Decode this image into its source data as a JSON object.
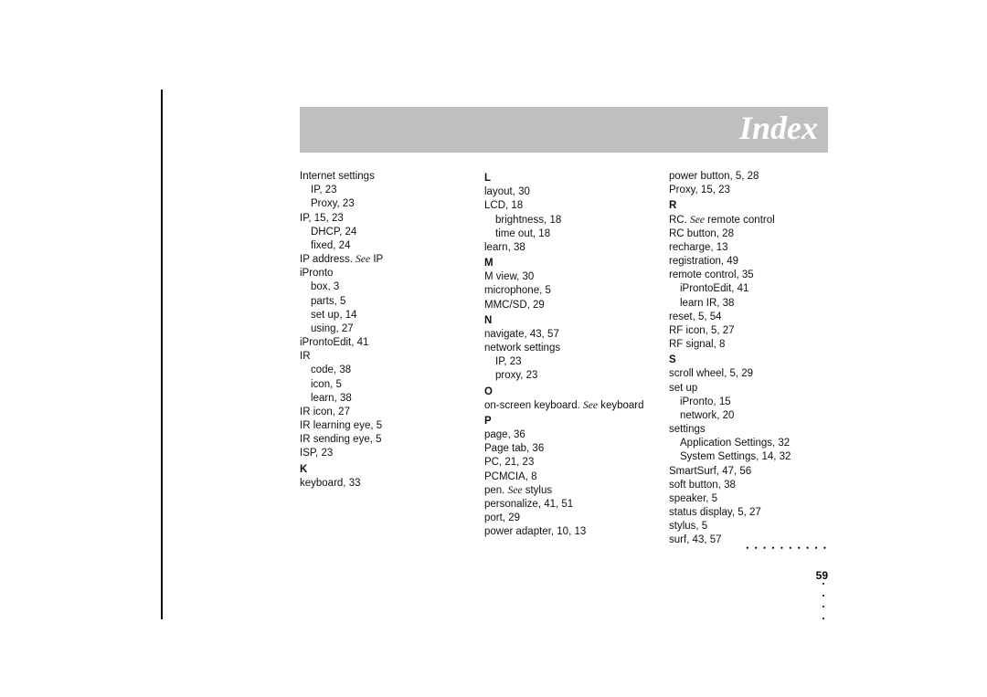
{
  "header": {
    "title": "Index"
  },
  "page_number": "59",
  "dots": "• • • • • • • • • •",
  "columns": {
    "col1": [
      {
        "t": "Internet settings",
        "i": 0
      },
      {
        "t": "IP, 23",
        "i": 1
      },
      {
        "t": "Proxy, 23",
        "i": 1
      },
      {
        "t": "IP, 15, 23",
        "i": 0
      },
      {
        "t": "DHCP, 24",
        "i": 1
      },
      {
        "t": "fixed, 24",
        "i": 1
      },
      {
        "t": "IP address. ",
        "see": "See",
        "after": " IP",
        "i": 0
      },
      {
        "t": "iPronto",
        "i": 0
      },
      {
        "t": "box, 3",
        "i": 1
      },
      {
        "t": "parts, 5",
        "i": 1
      },
      {
        "t": "set up, 14",
        "i": 1
      },
      {
        "t": "using, 27",
        "i": 1
      },
      {
        "t": "iProntoEdit, 41",
        "i": 0
      },
      {
        "t": "IR",
        "i": 0
      },
      {
        "t": "code, 38",
        "i": 1
      },
      {
        "t": "icon, 5",
        "i": 1
      },
      {
        "t": "learn, 38",
        "i": 1
      },
      {
        "t": "IR icon, 27",
        "i": 0
      },
      {
        "t": "IR learning eye, 5",
        "i": 0
      },
      {
        "t": "IR sending eye, 5",
        "i": 0
      },
      {
        "t": "ISP, 23",
        "i": 0
      },
      {
        "letter": "K"
      },
      {
        "t": "keyboard, 33",
        "i": 0
      }
    ],
    "col2": [
      {
        "letter": "L"
      },
      {
        "t": "layout, 30",
        "i": 0
      },
      {
        "t": "LCD, 18",
        "i": 0
      },
      {
        "t": "brightness, 18",
        "i": 1
      },
      {
        "t": "time out, 18",
        "i": 1
      },
      {
        "t": "learn, 38",
        "i": 0
      },
      {
        "letter": "M"
      },
      {
        "t": "M view, 30",
        "i": 0
      },
      {
        "t": "microphone, 5",
        "i": 0
      },
      {
        "t": "MMC/SD, 29",
        "i": 0
      },
      {
        "letter": "N"
      },
      {
        "t": "navigate, 43, 57",
        "i": 0
      },
      {
        "t": "network settings",
        "i": 0
      },
      {
        "t": "IP, 23",
        "i": 1
      },
      {
        "t": "proxy, 23",
        "i": 1
      },
      {
        "letter": "O"
      },
      {
        "t": "on-screen keyboard. ",
        "see": "See",
        "after": " keyboard",
        "i": 0
      },
      {
        "letter": "P"
      },
      {
        "t": "page, 36",
        "i": 0
      },
      {
        "t": "Page tab, 36",
        "i": 0
      },
      {
        "t": "PC, 21, 23",
        "i": 0
      },
      {
        "t": "PCMCIA, 8",
        "i": 0
      },
      {
        "t": "pen. ",
        "see": "See",
        "after": " stylus",
        "i": 0
      },
      {
        "t": "personalize, 41, 51",
        "i": 0
      },
      {
        "t": "port, 29",
        "i": 0
      },
      {
        "t": "power adapter, 10, 13",
        "i": 0
      }
    ],
    "col3": [
      {
        "t": "power button, 5, 28",
        "i": 0
      },
      {
        "t": "Proxy, 15, 23",
        "i": 0
      },
      {
        "letter": "R"
      },
      {
        "t": "RC. ",
        "see": "See",
        "after": " remote control",
        "i": 0
      },
      {
        "t": "RC button, 28",
        "i": 0
      },
      {
        "t": "recharge, 13",
        "i": 0
      },
      {
        "t": "registration, 49",
        "i": 0
      },
      {
        "t": "remote control, 35",
        "i": 0
      },
      {
        "t": "iProntoEdit, 41",
        "i": 1
      },
      {
        "t": "learn IR, 38",
        "i": 1
      },
      {
        "t": "reset, 5, 54",
        "i": 0
      },
      {
        "t": "RF icon, 5, 27",
        "i": 0
      },
      {
        "t": "RF signal, 8",
        "i": 0
      },
      {
        "letter": "S"
      },
      {
        "t": "scroll wheel, 5, 29",
        "i": 0
      },
      {
        "t": "set up",
        "i": 0
      },
      {
        "t": "iPronto, 15",
        "i": 1
      },
      {
        "t": "network, 20",
        "i": 1
      },
      {
        "t": "settings",
        "i": 0
      },
      {
        "t": "Application Settings, 32",
        "i": 1
      },
      {
        "t": "System Settings, 14, 32",
        "i": 1
      },
      {
        "t": "SmartSurf, 47, 56",
        "i": 0
      },
      {
        "t": "soft button, 38",
        "i": 0
      },
      {
        "t": "speaker, 5",
        "i": 0
      },
      {
        "t": "status display, 5, 27",
        "i": 0
      },
      {
        "t": "stylus, 5",
        "i": 0
      },
      {
        "t": "surf, 43, 57",
        "i": 0
      }
    ]
  }
}
